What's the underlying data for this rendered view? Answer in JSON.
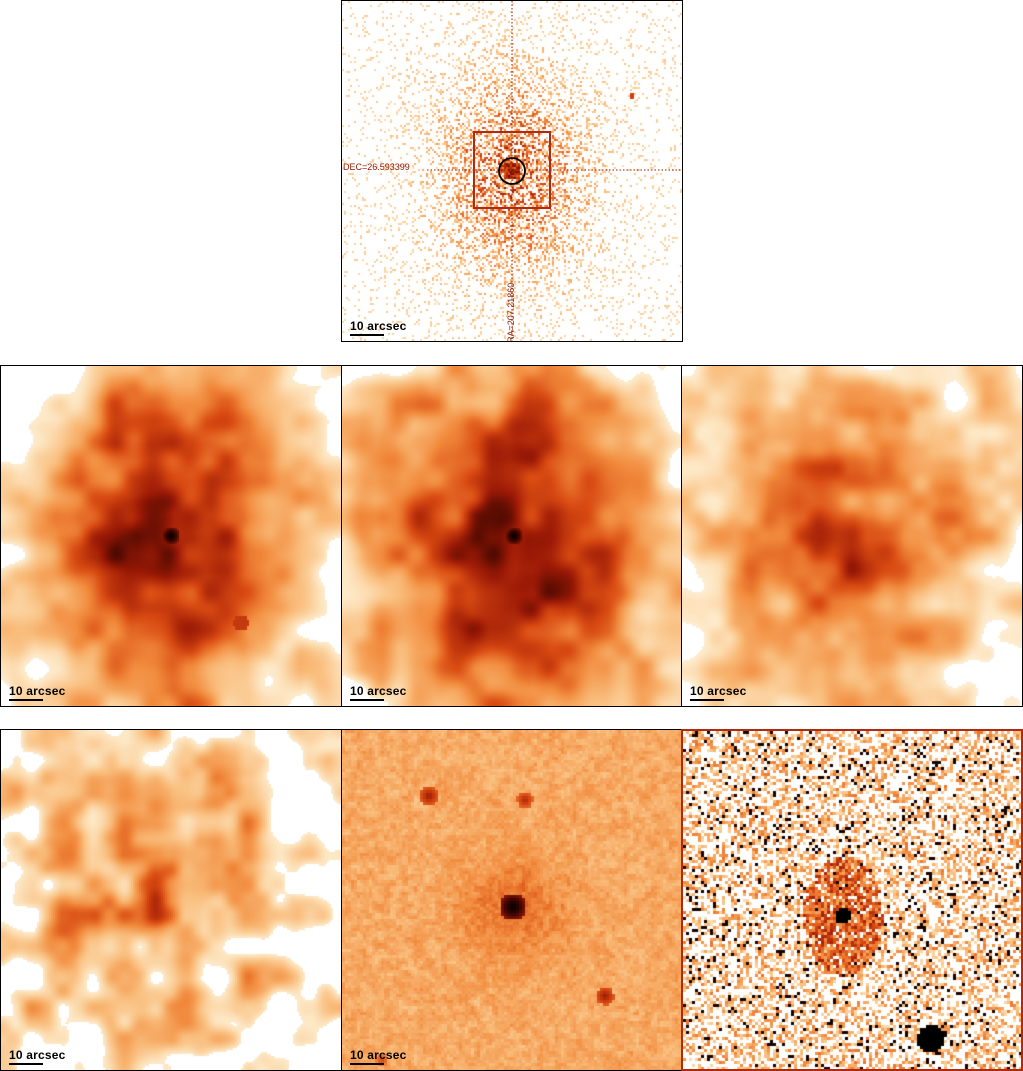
{
  "scale_label": "10 arcsec",
  "top_panel": {
    "dec_label": "DEC=26.593399",
    "ra_label": "RA=207.21860"
  },
  "panels": [
    {
      "id": "top",
      "style": "raw"
    },
    {
      "id": "mid-1",
      "style": "smooth-peaked"
    },
    {
      "id": "mid-2",
      "style": "smooth-peaked"
    },
    {
      "id": "mid-3",
      "style": "smooth-diffuse"
    },
    {
      "id": "bottom-1",
      "style": "smooth-patchy"
    },
    {
      "id": "bottom-2",
      "style": "optical-field"
    },
    {
      "id": "bottom-3",
      "style": "residual-map"
    }
  ],
  "colors": {
    "colormap": [
      "#ffffff",
      "#fde7c4",
      "#f9bd7c",
      "#f18a3c",
      "#d84a12",
      "#9c1a06",
      "#3a0500",
      "#000000"
    ],
    "crosshair": "#8b1a00",
    "box": "#b02a10",
    "circle": "#000000",
    "residual_frame": "#b02a10"
  }
}
